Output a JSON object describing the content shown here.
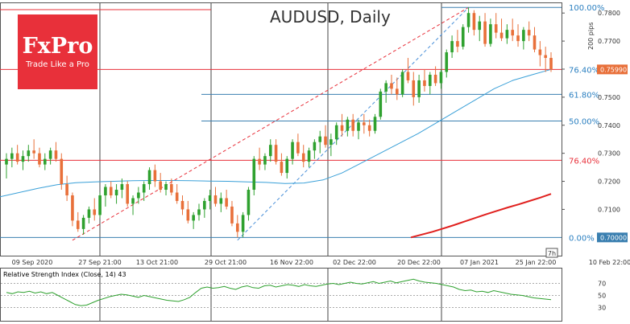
{
  "logo": {
    "brand": "FxPro",
    "tagline": "Trade Like a Pro"
  },
  "chart_data": {
    "type": "candlestick",
    "title": "AUDUSD, Daily",
    "price_axis": {
      "ylim": [
        0.6935,
        0.7835
      ],
      "ticks": [
        "0.7800",
        "0.7700",
        "0.7600",
        "0.7500",
        "0.7400",
        "0.7300",
        "0.7200",
        "0.7100"
      ],
      "current_price_label": "0.75990",
      "level_label": "0.70000"
    },
    "time_axis": {
      "labels": [
        "09 Sep 2020",
        "27 Sep 21:00",
        "13 Oct 21:00",
        "29 Oct 21:00",
        "16 Nov 22:00",
        "02 Dec 22:00",
        "20 Dec 22:00",
        "07 Jan 2021",
        "25 Jan 22:00",
        "10 Feb 22:00"
      ],
      "marker": "7h"
    },
    "fib_levels": [
      {
        "label": "100.00%",
        "price": 0.782
      },
      {
        "label": "76.40%",
        "price": 0.7599
      },
      {
        "label": "61.80%",
        "price": 0.751
      },
      {
        "label": "50.00%",
        "price": 0.7415
      },
      {
        "label": "0.00%",
        "price": 0.7
      }
    ],
    "support_level": {
      "label": "76.40%",
      "price": 0.7275
    },
    "annotation": "200 pips",
    "candles": [
      [
        0.726,
        0.73,
        0.721,
        0.728
      ],
      [
        0.728,
        0.732,
        0.725,
        0.73
      ],
      [
        0.73,
        0.733,
        0.726,
        0.727
      ],
      [
        0.727,
        0.731,
        0.724,
        0.729
      ],
      [
        0.729,
        0.733,
        0.727,
        0.731
      ],
      [
        0.731,
        0.735,
        0.728,
        0.73
      ],
      [
        0.73,
        0.732,
        0.725,
        0.726
      ],
      [
        0.726,
        0.73,
        0.724,
        0.728
      ],
      [
        0.728,
        0.732,
        0.726,
        0.731
      ],
      [
        0.731,
        0.734,
        0.727,
        0.728
      ],
      [
        0.728,
        0.73,
        0.717,
        0.719
      ],
      [
        0.719,
        0.722,
        0.713,
        0.715
      ],
      [
        0.715,
        0.716,
        0.704,
        0.706
      ],
      [
        0.706,
        0.709,
        0.702,
        0.703
      ],
      [
        0.703,
        0.708,
        0.701,
        0.707
      ],
      [
        0.707,
        0.711,
        0.705,
        0.71
      ],
      [
        0.71,
        0.714,
        0.706,
        0.708
      ],
      [
        0.708,
        0.716,
        0.707,
        0.715
      ],
      [
        0.715,
        0.719,
        0.711,
        0.718
      ],
      [
        0.718,
        0.72,
        0.714,
        0.715
      ],
      [
        0.715,
        0.719,
        0.712,
        0.717
      ],
      [
        0.717,
        0.721,
        0.714,
        0.719
      ],
      [
        0.719,
        0.72,
        0.711,
        0.712
      ],
      [
        0.712,
        0.715,
        0.708,
        0.714
      ],
      [
        0.714,
        0.718,
        0.712,
        0.716
      ],
      [
        0.716,
        0.72,
        0.713,
        0.719
      ],
      [
        0.719,
        0.725,
        0.717,
        0.724
      ],
      [
        0.724,
        0.726,
        0.718,
        0.72
      ],
      [
        0.72,
        0.723,
        0.716,
        0.717
      ],
      [
        0.717,
        0.72,
        0.715,
        0.719
      ],
      [
        0.719,
        0.721,
        0.715,
        0.716
      ],
      [
        0.716,
        0.719,
        0.712,
        0.713
      ],
      [
        0.713,
        0.715,
        0.708,
        0.71
      ],
      [
        0.71,
        0.713,
        0.705,
        0.706
      ],
      [
        0.706,
        0.709,
        0.703,
        0.708
      ],
      [
        0.708,
        0.712,
        0.706,
        0.71
      ],
      [
        0.71,
        0.714,
        0.707,
        0.713
      ],
      [
        0.713,
        0.717,
        0.71,
        0.715
      ],
      [
        0.715,
        0.718,
        0.711,
        0.712
      ],
      [
        0.712,
        0.716,
        0.709,
        0.714
      ],
      [
        0.714,
        0.717,
        0.71,
        0.711
      ],
      [
        0.711,
        0.713,
        0.704,
        0.705
      ],
      [
        0.705,
        0.708,
        0.7,
        0.702
      ],
      [
        0.702,
        0.709,
        0.7,
        0.708
      ],
      [
        0.708,
        0.718,
        0.706,
        0.717
      ],
      [
        0.717,
        0.729,
        0.715,
        0.728
      ],
      [
        0.728,
        0.732,
        0.724,
        0.726
      ],
      [
        0.726,
        0.73,
        0.724,
        0.729
      ],
      [
        0.729,
        0.735,
        0.727,
        0.733
      ],
      [
        0.733,
        0.735,
        0.726,
        0.727
      ],
      [
        0.727,
        0.73,
        0.722,
        0.723
      ],
      [
        0.723,
        0.729,
        0.721,
        0.728
      ],
      [
        0.728,
        0.735,
        0.726,
        0.734
      ],
      [
        0.734,
        0.737,
        0.729,
        0.73
      ],
      [
        0.73,
        0.733,
        0.725,
        0.727
      ],
      [
        0.727,
        0.732,
        0.725,
        0.731
      ],
      [
        0.731,
        0.735,
        0.728,
        0.734
      ],
      [
        0.734,
        0.738,
        0.73,
        0.736
      ],
      [
        0.736,
        0.74,
        0.732,
        0.733
      ],
      [
        0.733,
        0.737,
        0.729,
        0.735
      ],
      [
        0.735,
        0.741,
        0.733,
        0.74
      ],
      [
        0.74,
        0.744,
        0.736,
        0.738
      ],
      [
        0.738,
        0.743,
        0.736,
        0.742
      ],
      [
        0.742,
        0.744,
        0.736,
        0.738
      ],
      [
        0.738,
        0.742,
        0.735,
        0.741
      ],
      [
        0.741,
        0.744,
        0.737,
        0.74
      ],
      [
        0.74,
        0.742,
        0.736,
        0.738
      ],
      [
        0.738,
        0.744,
        0.737,
        0.743
      ],
      [
        0.743,
        0.753,
        0.742,
        0.752
      ],
      [
        0.752,
        0.756,
        0.748,
        0.755
      ],
      [
        0.755,
        0.758,
        0.751,
        0.753
      ],
      [
        0.753,
        0.757,
        0.749,
        0.751
      ],
      [
        0.751,
        0.76,
        0.75,
        0.759
      ],
      [
        0.759,
        0.764,
        0.755,
        0.756
      ],
      [
        0.756,
        0.759,
        0.747,
        0.75
      ],
      [
        0.75,
        0.758,
        0.748,
        0.756
      ],
      [
        0.756,
        0.76,
        0.752,
        0.754
      ],
      [
        0.754,
        0.759,
        0.751,
        0.758
      ],
      [
        0.758,
        0.761,
        0.754,
        0.755
      ],
      [
        0.755,
        0.76,
        0.753,
        0.759
      ],
      [
        0.759,
        0.767,
        0.757,
        0.766
      ],
      [
        0.766,
        0.772,
        0.764,
        0.77
      ],
      [
        0.77,
        0.774,
        0.766,
        0.768
      ],
      [
        0.768,
        0.776,
        0.767,
        0.775
      ],
      [
        0.775,
        0.782,
        0.773,
        0.78
      ],
      [
        0.78,
        0.781,
        0.772,
        0.774
      ],
      [
        0.774,
        0.779,
        0.77,
        0.777
      ],
      [
        0.777,
        0.78,
        0.768,
        0.769
      ],
      [
        0.769,
        0.778,
        0.768,
        0.776
      ],
      [
        0.776,
        0.78,
        0.771,
        0.773
      ],
      [
        0.773,
        0.778,
        0.77,
        0.771
      ],
      [
        0.771,
        0.776,
        0.769,
        0.774
      ],
      [
        0.774,
        0.778,
        0.77,
        0.772
      ],
      [
        0.772,
        0.776,
        0.768,
        0.77
      ],
      [
        0.77,
        0.775,
        0.767,
        0.774
      ],
      [
        0.774,
        0.777,
        0.77,
        0.772
      ],
      [
        0.772,
        0.775,
        0.766,
        0.767
      ],
      [
        0.767,
        0.77,
        0.761,
        0.765
      ],
      [
        0.765,
        0.768,
        0.759,
        0.764
      ],
      [
        0.764,
        0.766,
        0.759,
        0.7599
      ]
    ],
    "ma_blue": [
      0.7145,
      0.716,
      0.7175,
      0.7188,
      0.7195,
      0.7198,
      0.72,
      0.7202,
      0.7203,
      0.7203,
      0.7202,
      0.7201,
      0.72,
      0.7198,
      0.7196,
      0.7192,
      0.7194,
      0.7205,
      0.723,
      0.7265,
      0.73,
      0.7335,
      0.737,
      0.741,
      0.745,
      0.749,
      0.753,
      0.756,
      0.758,
      0.7599
    ],
    "ma_red": [
      0.7,
      0.701,
      0.702,
      0.7032,
      0.7044,
      0.7057,
      0.707,
      0.7083,
      0.7095,
      0.7107,
      0.7118,
      0.713,
      0.7142,
      0.7155
    ],
    "rsi": {
      "label": "Relative Strength Index (Close, 14) 43",
      "ticks": [
        "70",
        "50",
        "30"
      ],
      "levels": [
        70,
        50,
        30
      ],
      "values": [
        55,
        53,
        56,
        55,
        57,
        54,
        56,
        53,
        55,
        50,
        45,
        40,
        35,
        33,
        34,
        38,
        42,
        45,
        48,
        50,
        52,
        51,
        49,
        47,
        50,
        48,
        46,
        44,
        42,
        41,
        40,
        43,
        47,
        55,
        62,
        64,
        62,
        63,
        65,
        62,
        60,
        64,
        66,
        63,
        62,
        66,
        67,
        64,
        66,
        68,
        67,
        65,
        68,
        66,
        65,
        67,
        69,
        70,
        68,
        70,
        72,
        70,
        69,
        71,
        73,
        70,
        72,
        74,
        71,
        73,
        75,
        77,
        74,
        72,
        71,
        70,
        68,
        66,
        64,
        60,
        58,
        59,
        56,
        57,
        55,
        58,
        56,
        54,
        52,
        51,
        50,
        48,
        46,
        45,
        44,
        43
      ]
    }
  }
}
